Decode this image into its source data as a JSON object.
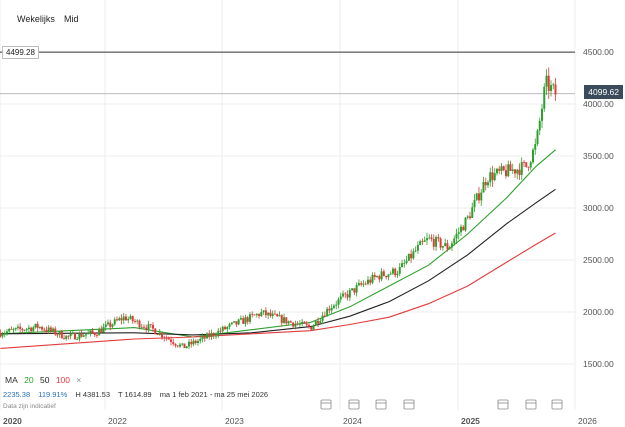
{
  "toolbar": {
    "timeframe": "Wekelijks",
    "price_type": "Mid"
  },
  "markers": {
    "line_level": "4499.28",
    "last_price": "4099.62"
  },
  "indicators": {
    "label": "MA",
    "ma20": "20",
    "ma50": "50",
    "ma100": "100",
    "close": "×",
    "colors": {
      "ma20": "#2ca02c",
      "ma50": "#222222",
      "ma100": "#e33b3b"
    }
  },
  "ohlc": {
    "last": "2235.38",
    "pct": "119.91%",
    "high": "H 4381.53",
    "low": "T 1614.89",
    "range": "ma 1 feb 2021 - ma 25 mei 2026"
  },
  "footnote": "Data zijn indicatief",
  "chart_data": {
    "type": "candlestick",
    "x_labels": [
      "2020",
      "2022",
      "2023",
      "2024",
      "2025",
      "2026"
    ],
    "y_ticks": [
      "1500.00",
      "2000.00",
      "2500.00",
      "3000.00",
      "3500.00",
      "4000.00",
      "4500.00"
    ],
    "ylim": [
      1400,
      4600
    ],
    "price_path": [
      [
        "2021-02",
        1800
      ],
      [
        "2021-06",
        1860
      ],
      [
        "2021-09",
        1760
      ],
      [
        "2021-12",
        1800
      ],
      [
        "2022-03",
        1950
      ],
      [
        "2022-06",
        1830
      ],
      [
        "2022-09",
        1660
      ],
      [
        "2022-11",
        1740
      ],
      [
        "2023-02",
        1870
      ],
      [
        "2023-05",
        1990
      ],
      [
        "2023-08",
        1900
      ],
      [
        "2023-10",
        1850
      ],
      [
        "2023-12",
        2050
      ],
      [
        "2024-03",
        2250
      ],
      [
        "2024-05",
        2350
      ],
      [
        "2024-07",
        2400
      ],
      [
        "2024-09",
        2620
      ],
      [
        "2024-10",
        2700
      ],
      [
        "2024-12",
        2620
      ],
      [
        "2025-02",
        2900
      ],
      [
        "2025-04",
        3300
      ],
      [
        "2025-06",
        3350
      ],
      [
        "2025-08",
        3400
      ],
      [
        "2025-09",
        3600
      ],
      [
        "2025-10",
        4200
      ],
      [
        "2025-11",
        4100
      ]
    ],
    "ma_series": [
      {
        "name": "20",
        "color": "#2ca02c",
        "points": [
          [
            "2021-02",
            1790
          ],
          [
            "2022-04",
            1850
          ],
          [
            "2022-10",
            1760
          ],
          [
            "2023-04",
            1830
          ],
          [
            "2023-10",
            1900
          ],
          [
            "2024-02",
            2050
          ],
          [
            "2024-06",
            2250
          ],
          [
            "2024-10",
            2450
          ],
          [
            "2025-02",
            2750
          ],
          [
            "2025-06",
            3100
          ],
          [
            "2025-09",
            3400
          ],
          [
            "2025-11",
            3560
          ]
        ]
      },
      {
        "name": "50",
        "color": "#222222",
        "points": [
          [
            "2021-02",
            1790
          ],
          [
            "2022-04",
            1800
          ],
          [
            "2022-10",
            1780
          ],
          [
            "2023-04",
            1800
          ],
          [
            "2023-10",
            1860
          ],
          [
            "2024-02",
            1960
          ],
          [
            "2024-06",
            2100
          ],
          [
            "2024-10",
            2300
          ],
          [
            "2025-02",
            2550
          ],
          [
            "2025-06",
            2850
          ],
          [
            "2025-09",
            3050
          ],
          [
            "2025-11",
            3180
          ]
        ]
      },
      {
        "name": "100",
        "color": "#e33b3b",
        "points": [
          [
            "2021-02",
            1650
          ],
          [
            "2022-04",
            1740
          ],
          [
            "2022-10",
            1760
          ],
          [
            "2023-04",
            1790
          ],
          [
            "2023-10",
            1820
          ],
          [
            "2024-02",
            1880
          ],
          [
            "2024-06",
            1950
          ],
          [
            "2024-10",
            2080
          ],
          [
            "2025-02",
            2250
          ],
          [
            "2025-06",
            2480
          ],
          [
            "2025-09",
            2650
          ],
          [
            "2025-11",
            2760
          ]
        ]
      }
    ],
    "reference_line": 4499.28,
    "last_price_line": 4099.62
  }
}
